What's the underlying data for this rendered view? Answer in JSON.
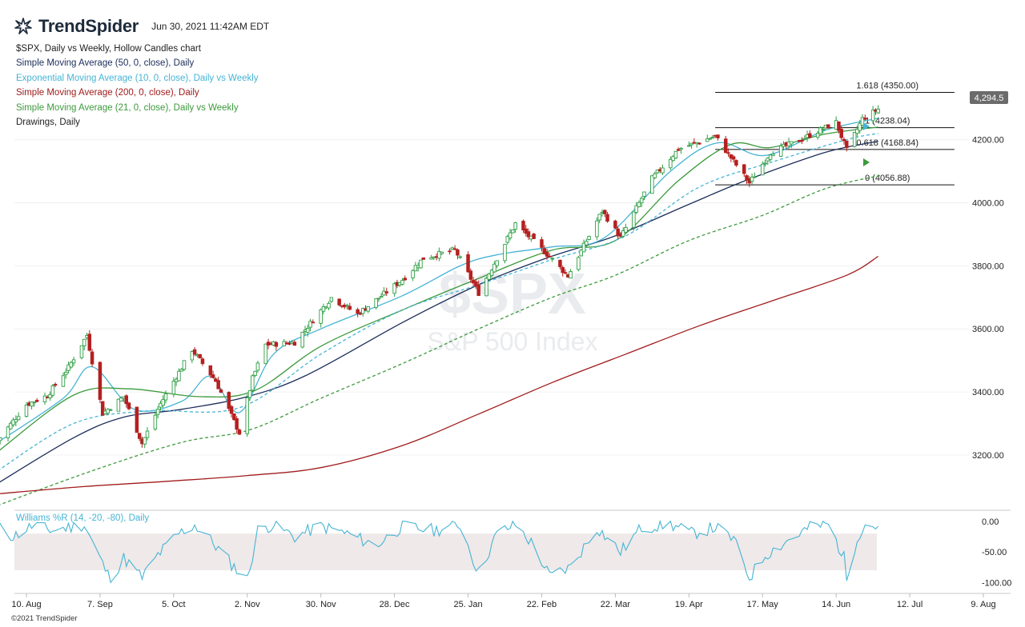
{
  "header": {
    "brand": "TrendSpider",
    "timestamp": "Jun 30, 2021 11:42AM EDT",
    "copyright": "©2021 TrendSpider"
  },
  "legend": [
    {
      "text": "$SPX, Daily vs Weekly, Hollow Candles chart",
      "color": "#222222"
    },
    {
      "text": "Simple Moving Average (50, 0, close), Daily",
      "color": "#1c2e5a"
    },
    {
      "text": "Exponential Moving Average (10, 0, close), Daily vs Weekly",
      "color": "#46b4d4"
    },
    {
      "text": "Simple Moving Average (200, 0, close), Daily",
      "color": "#a01c1c"
    },
    {
      "text": "Simple Moving Average (21, 0, close), Daily vs Weekly",
      "color": "#3c9a3c"
    },
    {
      "text": "Drawings, Daily",
      "color": "#222222"
    }
  ],
  "watermark": {
    "symbol": "$SPX",
    "name": "S&P 500 Index"
  },
  "price_badge": "4,294.5",
  "indicator_label": "Williams %R (14, -20, -80), Daily",
  "chart_data": {
    "type": "candlestick",
    "x_labels": [
      "10. Aug",
      "7. Sep",
      "5. Oct",
      "2. Nov",
      "30. Nov",
      "28. Dec",
      "25. Jan",
      "22. Feb",
      "22. Mar",
      "19. Apr",
      "17. May",
      "14. Jun",
      "12. Jul",
      "9. Aug"
    ],
    "x_dates": [
      "2020-08-10",
      "2020-09-07",
      "2020-10-05",
      "2020-11-02",
      "2020-11-30",
      "2020-12-28",
      "2021-01-25",
      "2021-02-22",
      "2021-03-22",
      "2021-04-19",
      "2021-05-17",
      "2021-06-14",
      "2021-07-12",
      "2021-08-09"
    ],
    "y_ticks": [
      3200,
      3400,
      3600,
      3800,
      4000,
      4200
    ],
    "y_tick_labels": [
      "3200.00",
      "3400.00",
      "3600.00",
      "3800.00",
      "4000.00",
      "4200.00"
    ],
    "ylim": [
      3030,
      4440
    ],
    "close_points": [
      [
        "2020-07-30",
        3246
      ],
      [
        "2020-08-10",
        3360
      ],
      [
        "2020-08-18",
        3389
      ],
      [
        "2020-08-26",
        3478
      ],
      [
        "2020-09-02",
        3580
      ],
      [
        "2020-09-08",
        3332
      ],
      [
        "2020-09-16",
        3385
      ],
      [
        "2020-09-23",
        3237
      ],
      [
        "2020-09-30",
        3363
      ],
      [
        "2020-10-12",
        3534
      ],
      [
        "2020-10-21",
        3435
      ],
      [
        "2020-10-30",
        3270
      ],
      [
        "2020-11-04",
        3443
      ],
      [
        "2020-11-09",
        3550
      ],
      [
        "2020-11-20",
        3557
      ],
      [
        "2020-12-04",
        3699
      ],
      [
        "2020-12-14",
        3647
      ],
      [
        "2020-12-31",
        3756
      ],
      [
        "2021-01-08",
        3824
      ],
      [
        "2021-01-20",
        3851
      ],
      [
        "2021-01-29",
        3714
      ],
      [
        "2021-02-12",
        3934
      ],
      [
        "2021-02-25",
        3829
      ],
      [
        "2021-03-04",
        3768
      ],
      [
        "2021-03-17",
        3974
      ],
      [
        "2021-03-24",
        3889
      ],
      [
        "2021-04-05",
        4077
      ],
      [
        "2021-04-15",
        4170
      ],
      [
        "2021-04-29",
        4211
      ],
      [
        "2021-05-12",
        4063
      ],
      [
        "2021-05-20",
        4159
      ],
      [
        "2021-06-01",
        4202
      ],
      [
        "2021-06-14",
        4255
      ],
      [
        "2021-06-18",
        4166
      ],
      [
        "2021-06-24",
        4266
      ],
      [
        "2021-06-30",
        4297
      ]
    ],
    "series": [
      {
        "name": "Simple Moving Average (50, 0, close), Daily",
        "color": "#1c2e5a",
        "points": [
          [
            "2020-07-30",
            3110
          ],
          [
            "2020-08-28",
            3255
          ],
          [
            "2020-09-16",
            3320
          ],
          [
            "2020-10-08",
            3345
          ],
          [
            "2020-11-02",
            3385
          ],
          [
            "2020-11-25",
            3455
          ],
          [
            "2020-12-31",
            3620
          ],
          [
            "2021-01-29",
            3740
          ],
          [
            "2021-02-24",
            3825
          ],
          [
            "2021-03-22",
            3895
          ],
          [
            "2021-04-19",
            3995
          ],
          [
            "2021-05-12",
            4075
          ],
          [
            "2021-06-10",
            4160
          ],
          [
            "2021-06-30",
            4195
          ]
        ]
      },
      {
        "name": "Exponential Moving Average (10, 0, close), Daily vs Weekly",
        "color": "#46b4d4",
        "points": [
          [
            "2020-07-30",
            3240
          ],
          [
            "2020-08-24",
            3380
          ],
          [
            "2020-09-04",
            3480
          ],
          [
            "2020-09-20",
            3345
          ],
          [
            "2020-10-08",
            3370
          ],
          [
            "2020-10-19",
            3450
          ],
          [
            "2020-10-30",
            3335
          ],
          [
            "2020-11-12",
            3520
          ],
          [
            "2020-11-30",
            3600
          ],
          [
            "2020-12-31",
            3705
          ],
          [
            "2021-01-22",
            3800
          ],
          [
            "2021-02-05",
            3835
          ],
          [
            "2021-02-26",
            3860
          ],
          [
            "2021-03-18",
            3890
          ],
          [
            "2021-04-12",
            4100
          ],
          [
            "2021-04-30",
            4190
          ],
          [
            "2021-05-18",
            4150
          ],
          [
            "2021-06-10",
            4230
          ],
          [
            "2021-06-30",
            4268
          ]
        ]
      },
      {
        "name": "Simple Moving Average (21, 0, close), Daily vs Weekly",
        "color": "#3c9a3c",
        "points": [
          [
            "2020-07-30",
            3210
          ],
          [
            "2020-08-28",
            3390
          ],
          [
            "2020-09-18",
            3410
          ],
          [
            "2020-10-15",
            3385
          ],
          [
            "2020-11-05",
            3405
          ],
          [
            "2020-11-30",
            3545
          ],
          [
            "2020-12-31",
            3660
          ],
          [
            "2021-01-29",
            3760
          ],
          [
            "2021-02-26",
            3850
          ],
          [
            "2021-03-22",
            3880
          ],
          [
            "2021-04-15",
            4070
          ],
          [
            "2021-05-05",
            4185
          ],
          [
            "2021-05-20",
            4175
          ],
          [
            "2021-06-10",
            4218
          ],
          [
            "2021-06-30",
            4240
          ]
        ]
      },
      {
        "name": "Weekly SMA (dashed)",
        "color": "#3c9a3c",
        "dashed": true,
        "points": [
          [
            "2020-07-30",
            3040
          ],
          [
            "2020-09-04",
            3150
          ],
          [
            "2020-10-08",
            3240
          ],
          [
            "2020-11-03",
            3280
          ],
          [
            "2020-11-30",
            3380
          ],
          [
            "2020-12-31",
            3490
          ],
          [
            "2021-01-29",
            3600
          ],
          [
            "2021-02-26",
            3700
          ],
          [
            "2021-03-22",
            3770
          ],
          [
            "2021-04-19",
            3880
          ],
          [
            "2021-05-17",
            3960
          ],
          [
            "2021-06-10",
            4045
          ],
          [
            "2021-07-01",
            4087
          ]
        ]
      },
      {
        "name": "Weekly EMA (dashed)",
        "color": "#46b4d4",
        "dashed": true,
        "points": [
          [
            "2020-07-30",
            3150
          ],
          [
            "2020-08-28",
            3300
          ],
          [
            "2020-09-25",
            3340
          ],
          [
            "2020-10-30",
            3350
          ],
          [
            "2020-11-30",
            3520
          ],
          [
            "2020-12-31",
            3660
          ],
          [
            "2021-01-29",
            3740
          ],
          [
            "2021-02-26",
            3820
          ],
          [
            "2021-03-26",
            3895
          ],
          [
            "2021-04-23",
            4050
          ],
          [
            "2021-05-21",
            4130
          ],
          [
            "2021-06-18",
            4200
          ],
          [
            "2021-06-30",
            4220
          ]
        ]
      },
      {
        "name": "Simple Moving Average (200, 0, close), Daily",
        "color": "#a01c1c",
        "points": [
          [
            "2020-07-30",
            3077
          ],
          [
            "2020-09-01",
            3100
          ],
          [
            "2020-10-05",
            3118
          ],
          [
            "2020-11-02",
            3135
          ],
          [
            "2020-11-30",
            3160
          ],
          [
            "2020-12-31",
            3230
          ],
          [
            "2021-01-29",
            3330
          ],
          [
            "2021-02-26",
            3430
          ],
          [
            "2021-03-26",
            3520
          ],
          [
            "2021-04-23",
            3610
          ],
          [
            "2021-05-21",
            3690
          ],
          [
            "2021-06-18",
            3770
          ],
          [
            "2021-06-30",
            3830
          ]
        ]
      }
    ],
    "fibonacci": [
      {
        "label": "1.618 (4350.00)",
        "value": 4350.0
      },
      {
        "label": "1 (4238.04)",
        "value": 4238.04
      },
      {
        "label": "0.618 (4168.84)",
        "value": 4168.84
      },
      {
        "label": "0 (4056.88)",
        "value": 4056.88
      }
    ],
    "fib_start": "2021-04-29",
    "fib_end": "2021-07-29",
    "williams_r": {
      "yticks": [
        0,
        -50,
        -100
      ],
      "ytick_labels": [
        "0.00",
        "-50.00",
        "-100.00"
      ],
      "band": [
        -20,
        -80
      ],
      "ylim": [
        5,
        -110
      ],
      "points": [
        [
          "2020-07-30",
          -10
        ],
        [
          "2020-08-05",
          -25
        ],
        [
          "2020-08-12",
          -8
        ],
        [
          "2020-08-20",
          -15
        ],
        [
          "2020-09-01",
          -5
        ],
        [
          "2020-09-08",
          -70
        ],
        [
          "2020-09-11",
          -96
        ],
        [
          "2020-09-16",
          -60
        ],
        [
          "2020-09-23",
          -92
        ],
        [
          "2020-09-29",
          -55
        ],
        [
          "2020-10-07",
          -20
        ],
        [
          "2020-10-13",
          -6
        ],
        [
          "2020-10-20",
          -35
        ],
        [
          "2020-10-27",
          -70
        ],
        [
          "2020-11-02",
          -96
        ],
        [
          "2020-11-06",
          -15
        ],
        [
          "2020-11-12",
          -5
        ],
        [
          "2020-11-20",
          -25
        ],
        [
          "2020-11-30",
          -8
        ],
        [
          "2020-12-10",
          -20
        ],
        [
          "2020-12-21",
          -40
        ],
        [
          "2020-12-31",
          -8
        ],
        [
          "2021-01-12",
          -15
        ],
        [
          "2021-01-22",
          -5
        ],
        [
          "2021-01-29",
          -85
        ],
        [
          "2021-02-05",
          -20
        ],
        [
          "2021-02-12",
          -5
        ],
        [
          "2021-02-19",
          -40
        ],
        [
          "2021-02-25",
          -90
        ],
        [
          "2021-03-05",
          -75
        ],
        [
          "2021-03-15",
          -10
        ],
        [
          "2021-03-24",
          -50
        ],
        [
          "2021-04-01",
          -10
        ],
        [
          "2021-04-12",
          -5
        ],
        [
          "2021-04-20",
          -20
        ],
        [
          "2021-04-29",
          -10
        ],
        [
          "2021-05-06",
          -30
        ],
        [
          "2021-05-12",
          -92
        ],
        [
          "2021-05-18",
          -55
        ],
        [
          "2021-05-27",
          -30
        ],
        [
          "2021-06-04",
          -10
        ],
        [
          "2021-06-11",
          -5
        ],
        [
          "2021-06-17",
          -60
        ],
        [
          "2021-06-18",
          -95
        ],
        [
          "2021-06-22",
          -25
        ],
        [
          "2021-06-25",
          -5
        ],
        [
          "2021-06-30",
          -8
        ]
      ]
    }
  }
}
